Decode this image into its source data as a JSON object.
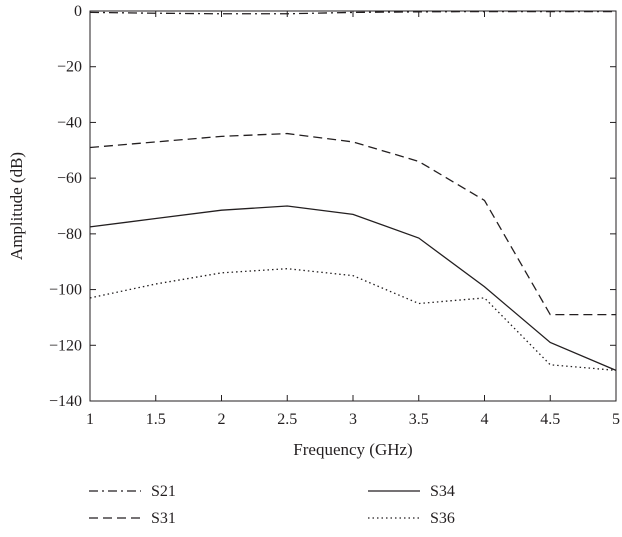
{
  "chart_data": {
    "type": "line",
    "title": "",
    "xlabel": "Frequency (GHz)",
    "ylabel": "Amplitude (dB)",
    "xlim": [
      1,
      5
    ],
    "ylim": [
      -140,
      0
    ],
    "xticks": [
      "1",
      "1.5",
      "2",
      "2.5",
      "3",
      "3.5",
      "4",
      "4.5",
      "5"
    ],
    "yticks": [
      "0",
      "−20",
      "−40",
      "−60",
      "−80",
      "−100",
      "−120",
      "−140"
    ],
    "grid": false,
    "legend_position": "below",
    "x": [
      1,
      1.5,
      2,
      2.5,
      3,
      3.5,
      4,
      4.5,
      5
    ],
    "series": [
      {
        "name": "S21",
        "dash": "dashdot",
        "values": [
          -0.5,
          -0.8,
          -1,
          -1,
          -0.5,
          -0.3,
          -0.2,
          -0.2,
          -0.2
        ]
      },
      {
        "name": "S31",
        "dash": "dashed",
        "values": [
          -49,
          -47,
          -45,
          -44,
          -47,
          -54,
          -68,
          -109,
          -109
        ]
      },
      {
        "name": "S34",
        "dash": "solid",
        "values": [
          -77.5,
          -74.5,
          -71.5,
          -70,
          -73,
          -81.5,
          -99,
          -119,
          -129
        ]
      },
      {
        "name": "S36",
        "dash": "dotted",
        "values": [
          -103,
          -98,
          -94,
          -92.5,
          -95,
          -105,
          -103,
          -127,
          -129
        ]
      }
    ]
  }
}
